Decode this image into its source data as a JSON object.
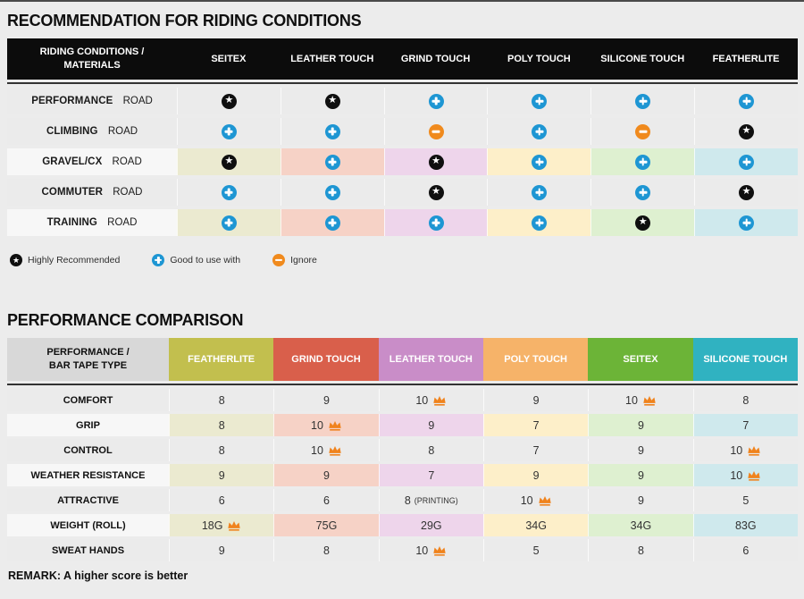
{
  "page": {
    "bg": "#ececec",
    "remark": "REMARK: A higher score is better"
  },
  "icon_colors": {
    "star": "#0f0f0f",
    "plus": "#1e96d3",
    "ignore": "#f08a1d",
    "crown": "#f0831d"
  },
  "column_tints": [
    "#ebead0",
    "#f6d2c6",
    "#eed5eb",
    "#fdefc9",
    "#def0d0",
    "#cfe9ed"
  ],
  "recommendation_table": {
    "title": "RECOMMENDATION FOR RIDING CONDITIONS",
    "corner_header": "RIDING CONDITIONS /\nMATERIALS",
    "material_headers": [
      "SEITEX",
      "LEATHER TOUCH",
      "GRIND TOUCH",
      "POLY TOUCH",
      "SILICONE TOUCH",
      "FEATHERLITE"
    ],
    "rows": [
      {
        "condition": "PERFORMANCE",
        "suffix": "ROAD",
        "tinted": false,
        "ratings": [
          "star",
          "star",
          "plus",
          "plus",
          "plus",
          "plus"
        ]
      },
      {
        "condition": "CLIMBING",
        "suffix": "ROAD",
        "tinted": false,
        "ratings": [
          "plus",
          "plus",
          "ignore",
          "plus",
          "ignore",
          "star"
        ]
      },
      {
        "condition": "GRAVEL/CX",
        "suffix": "ROAD",
        "tinted": true,
        "ratings": [
          "star",
          "plus",
          "star",
          "plus",
          "plus",
          "plus"
        ]
      },
      {
        "condition": "COMMUTER",
        "suffix": "ROAD",
        "tinted": false,
        "ratings": [
          "plus",
          "plus",
          "star",
          "plus",
          "plus",
          "star"
        ]
      },
      {
        "condition": "TRAINING",
        "suffix": "ROAD",
        "tinted": true,
        "ratings": [
          "plus",
          "plus",
          "plus",
          "plus",
          "star",
          "plus"
        ]
      }
    ],
    "legend": [
      {
        "icon": "star",
        "label": "Highly Recommended"
      },
      {
        "icon": "plus",
        "label": "Good to use with"
      },
      {
        "icon": "ignore",
        "label": "Ignore"
      }
    ]
  },
  "performance_table": {
    "title": "PERFORMANCE COMPARISON",
    "corner_header": "PERFORMANCE /\nBAR TAPE TYPE",
    "columns": [
      {
        "label": "FEATHERLITE",
        "color": "#c2bf4e"
      },
      {
        "label": "GRIND TOUCH",
        "color": "#d95f4b"
      },
      {
        "label": "LEATHER TOUCH",
        "color": "#c98dc8"
      },
      {
        "label": "POLY TOUCH",
        "color": "#f6b369"
      },
      {
        "label": "SEITEX",
        "color": "#6cb437"
      },
      {
        "label": "SILICONE TOUCH",
        "color": "#30b2c1"
      }
    ],
    "rows": [
      {
        "label": "COMFORT",
        "tinted": false,
        "values": [
          {
            "text": "8"
          },
          {
            "text": "9"
          },
          {
            "text": "10",
            "crown": true
          },
          {
            "text": "9"
          },
          {
            "text": "10",
            "crown": true
          },
          {
            "text": "8"
          }
        ]
      },
      {
        "label": "GRIP",
        "tinted": true,
        "values": [
          {
            "text": "8"
          },
          {
            "text": "10",
            "crown": true
          },
          {
            "text": "9"
          },
          {
            "text": "7"
          },
          {
            "text": "9"
          },
          {
            "text": "7"
          }
        ]
      },
      {
        "label": "CONTROL",
        "tinted": false,
        "values": [
          {
            "text": "8"
          },
          {
            "text": "10",
            "crown": true
          },
          {
            "text": "8"
          },
          {
            "text": "7"
          },
          {
            "text": "9"
          },
          {
            "text": "10",
            "crown": true
          }
        ]
      },
      {
        "label": "WEATHER RESISTANCE",
        "tinted": true,
        "values": [
          {
            "text": "9"
          },
          {
            "text": "9"
          },
          {
            "text": "7"
          },
          {
            "text": "9"
          },
          {
            "text": "9"
          },
          {
            "text": "10",
            "crown": true
          }
        ]
      },
      {
        "label": "ATTRACTIVE",
        "tinted": false,
        "values": [
          {
            "text": "6"
          },
          {
            "text": "6"
          },
          {
            "text": "8",
            "suffix": "(PRINTING)"
          },
          {
            "text": "10",
            "crown": true
          },
          {
            "text": "9"
          },
          {
            "text": "5"
          }
        ]
      },
      {
        "label": "WEIGHT (ROLL)",
        "tinted": true,
        "values": [
          {
            "text": "18G",
            "crown": true
          },
          {
            "text": "75G"
          },
          {
            "text": "29G"
          },
          {
            "text": "34G"
          },
          {
            "text": "34G"
          },
          {
            "text": "83G"
          }
        ]
      },
      {
        "label": "SWEAT HANDS",
        "tinted": false,
        "values": [
          {
            "text": "9"
          },
          {
            "text": "8"
          },
          {
            "text": "10",
            "crown": true
          },
          {
            "text": "5"
          },
          {
            "text": "8"
          },
          {
            "text": "6"
          }
        ]
      }
    ]
  }
}
